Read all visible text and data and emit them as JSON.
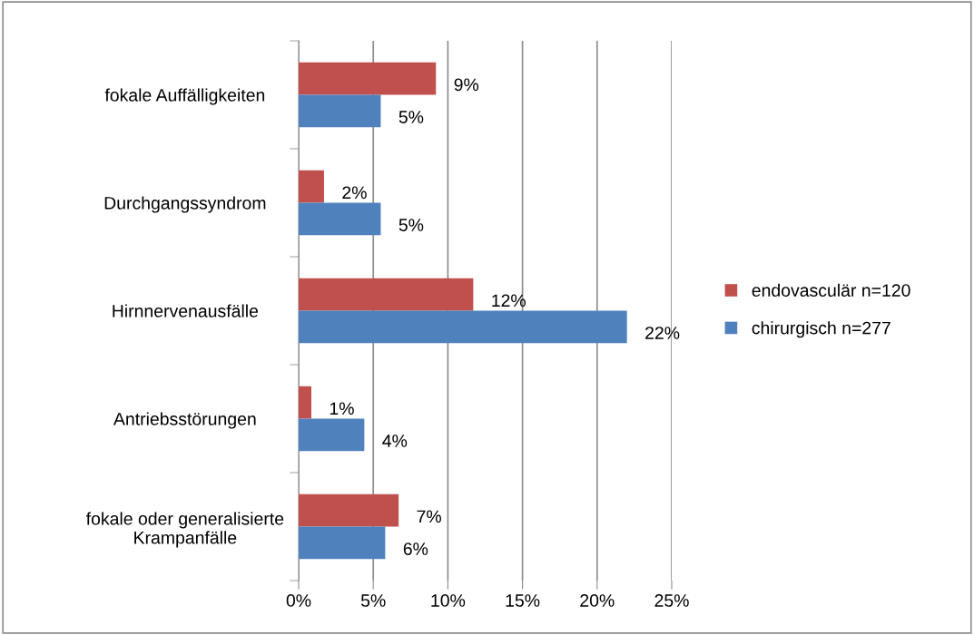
{
  "chart_data": {
    "type": "bar",
    "orientation": "horizontal",
    "categories": [
      "fokale Auffälligkeiten",
      "Durchgangssyndrom",
      "Hirnnervenausfälle",
      "Antriebsstörungen",
      "fokale oder generalisierte\nKrampanfälle"
    ],
    "series": [
      {
        "name": "endovasculär n=120",
        "color": "#c0504d",
        "values": [
          9.2,
          1.7,
          11.7,
          0.85,
          6.7
        ],
        "value_labels": [
          "9%",
          "2%",
          "12%",
          "1%",
          "7%"
        ]
      },
      {
        "name": "chirurgisch n=277",
        "color": "#4f81bd",
        "values": [
          5.5,
          5.5,
          22.0,
          4.4,
          5.8
        ],
        "value_labels": [
          "5%",
          "5%",
          "22%",
          "4%",
          "6%"
        ]
      }
    ],
    "xlim": [
      0,
      25
    ],
    "xticks": [
      {
        "value": 0,
        "label": "0%"
      },
      {
        "value": 5,
        "label": "5%"
      },
      {
        "value": 10,
        "label": "10%"
      },
      {
        "value": 15,
        "label": "15%"
      },
      {
        "value": 20,
        "label": "20%"
      },
      {
        "value": 25,
        "label": "25%"
      }
    ],
    "grid": "x",
    "legend": "right"
  }
}
